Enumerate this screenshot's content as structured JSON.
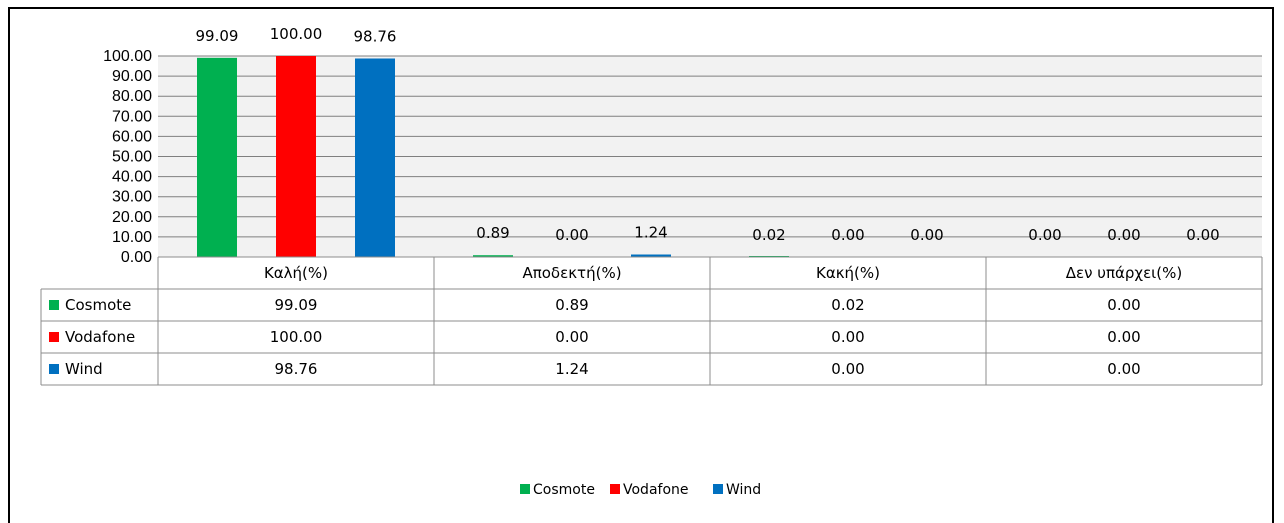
{
  "chart_data": {
    "type": "bar",
    "categories": [
      "Καλή(%)",
      "Αποδεκτή(%)",
      "Κακή(%)",
      "Δεν υπάρχει(%)"
    ],
    "series": [
      {
        "name": "Cosmote",
        "color": "#00b050",
        "values": [
          99.09,
          0.89,
          0.02,
          0.0
        ],
        "labels": [
          "99.09",
          "0.89",
          "0.02",
          "0.00"
        ]
      },
      {
        "name": "Vodafone",
        "color": "#ff0000",
        "values": [
          100.0,
          0.0,
          0.0,
          0.0
        ],
        "labels": [
          "100.00",
          "0.00",
          "0.00",
          "0.00"
        ]
      },
      {
        "name": "Wind",
        "color": "#0070c0",
        "values": [
          98.76,
          1.24,
          0.0,
          0.0
        ],
        "labels": [
          "98.76",
          "1.24",
          "0.00",
          "0.00"
        ]
      }
    ],
    "ylim": [
      0,
      100
    ],
    "yticks": [
      "0.00",
      "10.00",
      "20.00",
      "30.00",
      "40.00",
      "50.00",
      "60.00",
      "70.00",
      "80.00",
      "90.00",
      "100.00"
    ],
    "grid": true,
    "plot_background": "#f2f2f2",
    "data_table": true,
    "legend_position": "bottom"
  }
}
